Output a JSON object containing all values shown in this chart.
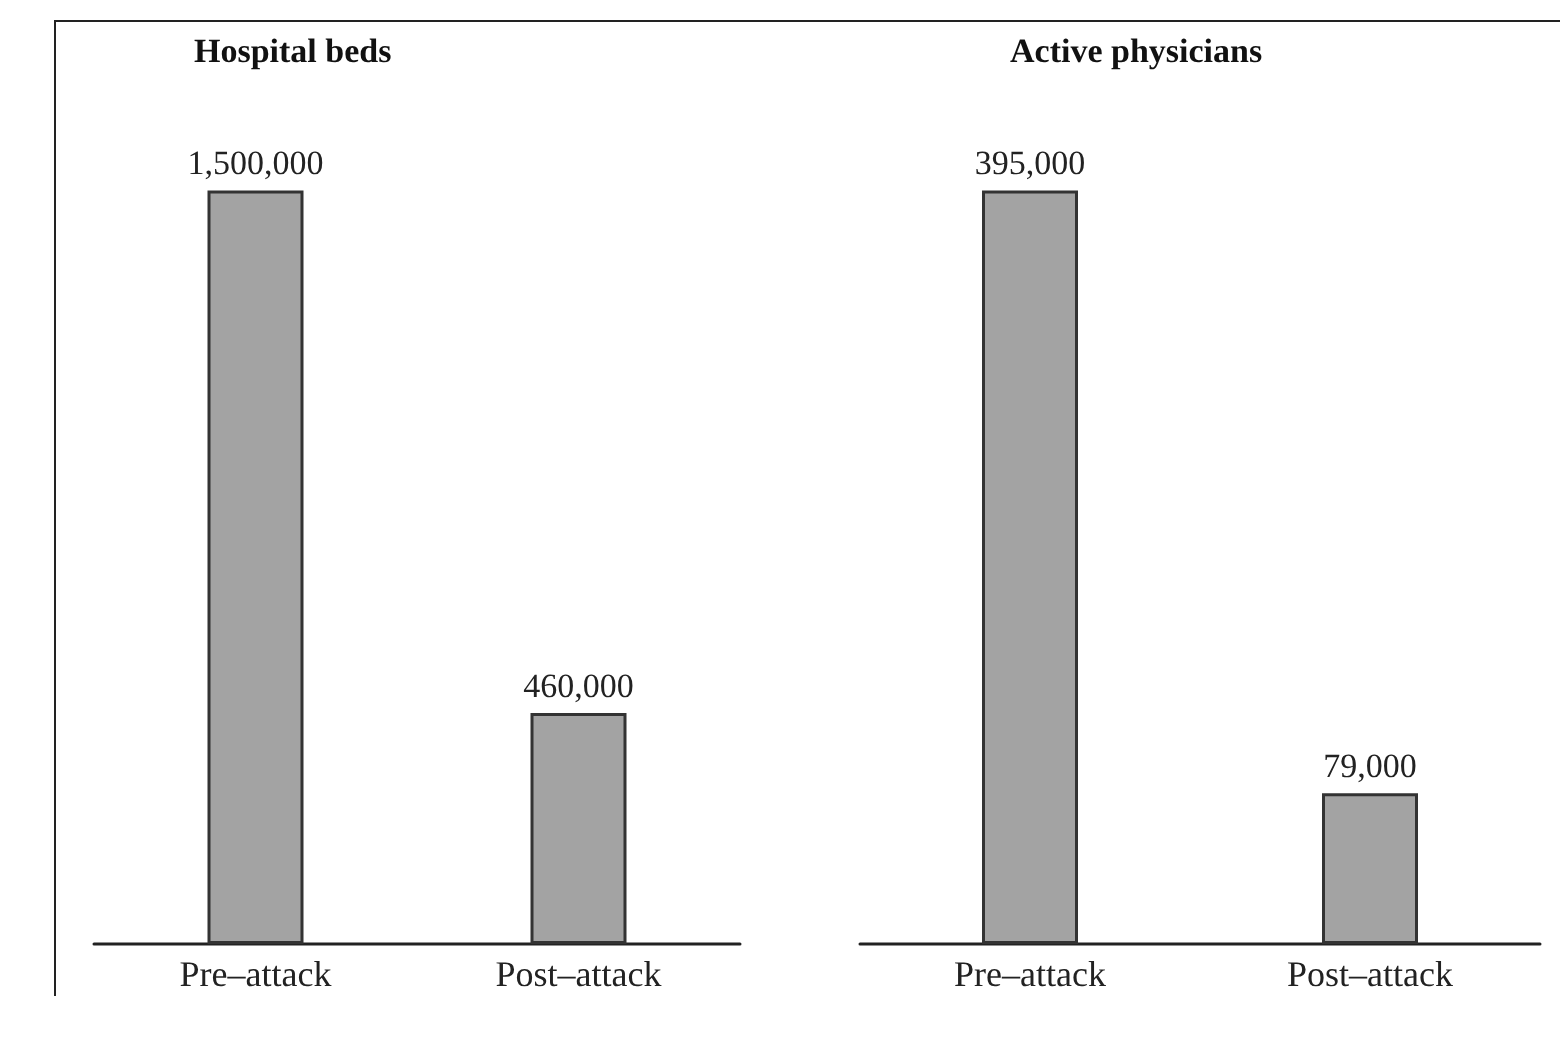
{
  "chart_data": [
    {
      "type": "bar",
      "title": "Hospital beds",
      "categories": [
        "Pre–attack",
        "Post–attack"
      ],
      "values": [
        1500000,
        460000
      ],
      "value_labels": [
        "1,500,000",
        "460,000"
      ],
      "color": "#a3a3a3"
    },
    {
      "type": "bar",
      "title": "Active physicians",
      "categories": [
        "Pre–attack",
        "Post–attack"
      ],
      "values": [
        395000,
        79000
      ],
      "value_labels": [
        "395,000",
        "79,000"
      ],
      "color": "#a3a3a3"
    }
  ]
}
